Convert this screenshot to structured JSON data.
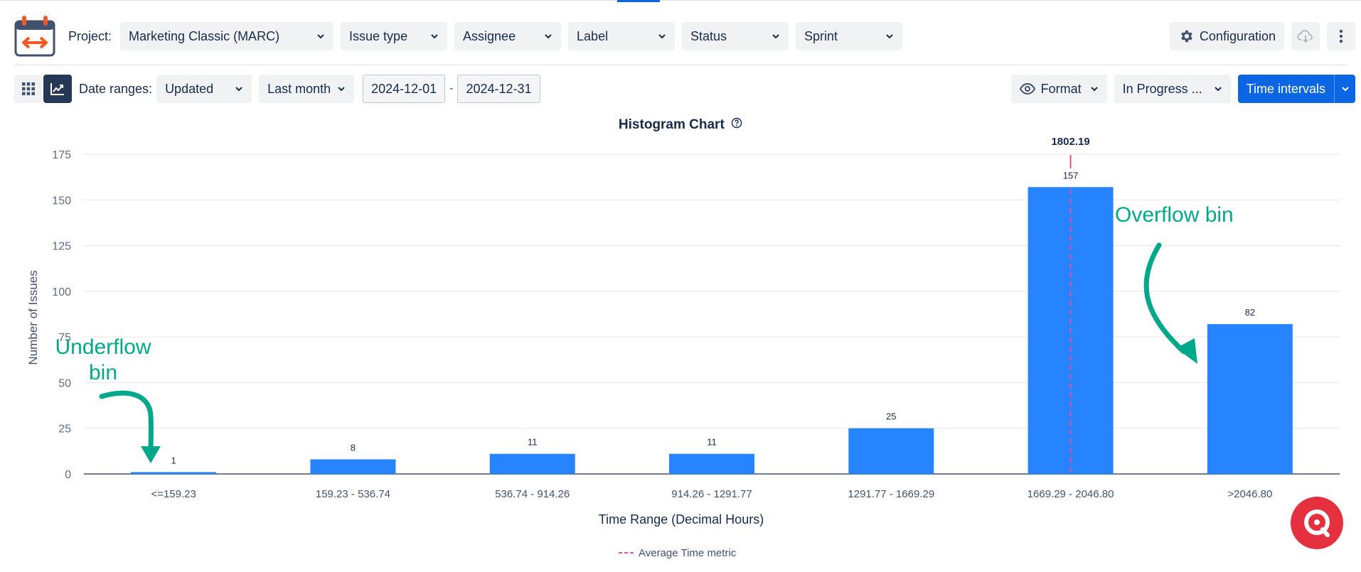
{
  "toolbar": {
    "project_label": "Project:",
    "project_value": "Marketing Classic (MARC)",
    "filters": [
      "Issue type",
      "Assignee",
      "Label",
      "Status",
      "Sprint"
    ],
    "configuration_label": "Configuration",
    "icons": {
      "app_logo": "calendar-arrows-icon",
      "config": "gear-icon",
      "download": "cloud-download-icon",
      "more": "more-vertical-icon"
    }
  },
  "controls": {
    "date_ranges_label": "Date ranges:",
    "date_field": "Updated",
    "period": "Last month",
    "date_from": "2024-12-01",
    "date_sep": "-",
    "date_to": "2024-12-31",
    "format_label": "Format",
    "status_dropdown": "In Progress ...",
    "time_intervals_label": "Time intervals",
    "icons": {
      "grid_view": "grid-view-icon",
      "chart_view": "chart-view-icon",
      "format": "eye-icon"
    }
  },
  "chart_data": {
    "type": "bar",
    "title": "Histogram Chart",
    "categories": [
      "<=159.23",
      "159.23 - 536.74",
      "536.74 - 914.26",
      "914.26 - 1291.77",
      "1291.77 - 1669.29",
      "1669.29 - 2046.80",
      ">2046.80"
    ],
    "values": [
      1,
      8,
      11,
      11,
      25,
      157,
      82
    ],
    "xlabel": "Time Range (Decimal Hours)",
    "ylabel": "Number of Issues",
    "ylim": [
      0,
      175
    ],
    "yticks": [
      0,
      25,
      50,
      75,
      100,
      125,
      150,
      175
    ],
    "grid": true,
    "bar_color": "#2684ff",
    "average": {
      "value": 1802.19,
      "label": "1802.19",
      "category_index": 5,
      "color": "#e0509c"
    },
    "legend": {
      "position": "bottom",
      "entries": [
        "Average Time metric"
      ]
    },
    "annotations": [
      {
        "text_lines": [
          "Underflow",
          "bin"
        ],
        "target_category": 0,
        "color": "#00a88a"
      },
      {
        "text_lines": [
          "Overflow bin"
        ],
        "target_category": 6,
        "color": "#00a88a"
      }
    ]
  },
  "fab": {
    "icon": "chat-support-icon",
    "color": "#e5303f"
  }
}
